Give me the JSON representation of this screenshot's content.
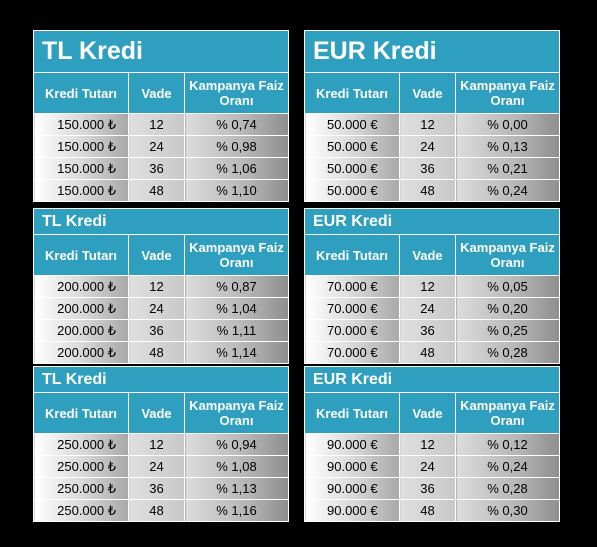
{
  "headers": {
    "amount": "Kredi Tutarı",
    "term": "Vade",
    "rate": "Kampanya Faiz Oranı"
  },
  "left": [
    {
      "title": "TL Kredi",
      "rows": [
        {
          "amount": "150.000 ₺",
          "term": "12",
          "rate": "% 0,74"
        },
        {
          "amount": "150.000 ₺",
          "term": "24",
          "rate": "% 0,98"
        },
        {
          "amount": "150.000 ₺",
          "term": "36",
          "rate": "% 1,06"
        },
        {
          "amount": "150.000 ₺",
          "term": "48",
          "rate": "% 1,10"
        }
      ]
    },
    {
      "title": "TL Kredi",
      "rows": [
        {
          "amount": "200.000 ₺",
          "term": "12",
          "rate": "% 0,87"
        },
        {
          "amount": "200.000 ₺",
          "term": "24",
          "rate": "% 1,04"
        },
        {
          "amount": "200.000 ₺",
          "term": "36",
          "rate": "% 1,11"
        },
        {
          "amount": "200.000 ₺",
          "term": "48",
          "rate": "% 1,14"
        }
      ]
    },
    {
      "title": "TL Kredi",
      "rows": [
        {
          "amount": "250.000 ₺",
          "term": "12",
          "rate": "% 0,94"
        },
        {
          "amount": "250.000 ₺",
          "term": "24",
          "rate": "% 1,08"
        },
        {
          "amount": "250.000 ₺",
          "term": "36",
          "rate": "% 1,13"
        },
        {
          "amount": "250.000 ₺",
          "term": "48",
          "rate": "% 1,16"
        }
      ]
    }
  ],
  "right": [
    {
      "title": "EUR Kredi",
      "rows": [
        {
          "amount": "50.000 €",
          "term": "12",
          "rate": "% 0,00"
        },
        {
          "amount": "50.000 €",
          "term": "24",
          "rate": "% 0,13"
        },
        {
          "amount": "50.000 €",
          "term": "36",
          "rate": "% 0,21"
        },
        {
          "amount": "50.000 €",
          "term": "48",
          "rate": "% 0,24"
        }
      ]
    },
    {
      "title": "EUR Kredi",
      "rows": [
        {
          "amount": "70.000 €",
          "term": "12",
          "rate": "% 0,05"
        },
        {
          "amount": "70.000 €",
          "term": "24",
          "rate": "% 0,20"
        },
        {
          "amount": "70.000 €",
          "term": "36",
          "rate": "% 0,25"
        },
        {
          "amount": "70.000 €",
          "term": "48",
          "rate": "% 0,28"
        }
      ]
    },
    {
      "title": "EUR Kredi",
      "rows": [
        {
          "amount": "90.000 €",
          "term": "12",
          "rate": "% 0,12"
        },
        {
          "amount": "90.000 €",
          "term": "24",
          "rate": "% 0,24"
        },
        {
          "amount": "90.000 €",
          "term": "36",
          "rate": "% 0,28"
        },
        {
          "amount": "90.000 €",
          "term": "48",
          "rate": "% 0,30"
        }
      ]
    }
  ]
}
